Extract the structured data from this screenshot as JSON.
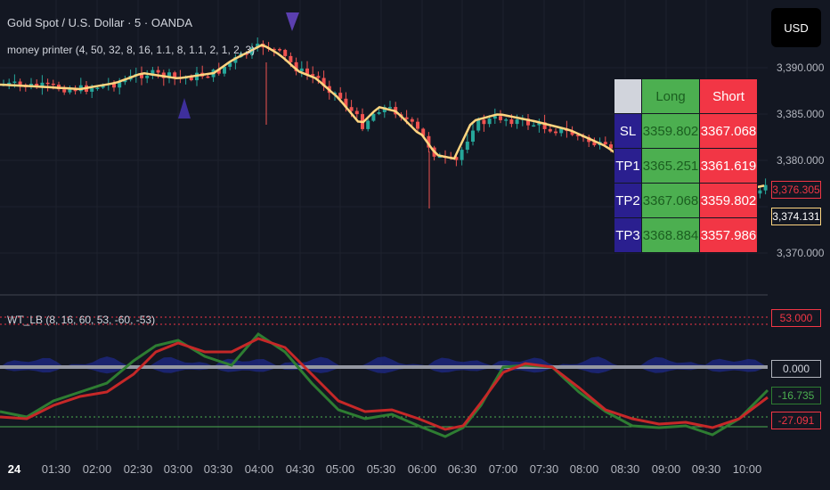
{
  "header": {
    "symbol": "Gold Spot / U.S. Dollar · 5 · OANDA",
    "indicator1": "money printer (4, 50, 32, 8, 16, 1.1, 8, 1.1, 2, 1, 2, 3)",
    "currency_button": "USD"
  },
  "price_axis": {
    "labels": [
      "3,390.000",
      "3,385.000",
      "3,380.000",
      "3,370.000"
    ],
    "badges": {
      "red": "3,376.305",
      "dark": "3,374.131"
    }
  },
  "signal_table": {
    "header": {
      "long": "Long",
      "short": "Short"
    },
    "rows": [
      {
        "label": "SL",
        "long": "3359.802",
        "short": "3367.068"
      },
      {
        "label": "TP1",
        "long": "3365.251",
        "short": "3361.619"
      },
      {
        "label": "TP2",
        "long": "3367.068",
        "short": "3359.802"
      },
      {
        "label": "TP3",
        "long": "3368.884",
        "short": "3357.986"
      }
    ]
  },
  "oscillator": {
    "label": "WT_LB (8, 16, 60, 53, -60, -53)",
    "badges": [
      "53.000",
      "0.000",
      "-16.735",
      "-27.091"
    ]
  },
  "time_axis": [
    "24",
    "01:30",
    "02:00",
    "02:30",
    "03:00",
    "03:30",
    "04:00",
    "04:30",
    "05:00",
    "05:30",
    "06:00",
    "06:30",
    "07:00",
    "07:30",
    "08:00",
    "08:30",
    "09:00",
    "09:30",
    "10:00"
  ],
  "colors": {
    "bg": "#131722",
    "up": "#26a69a",
    "down": "#ef5350",
    "ma": "#ffd580",
    "wt_green": "#2e7d32",
    "wt_red": "#c62828",
    "signal": "#4a3fa8"
  }
}
